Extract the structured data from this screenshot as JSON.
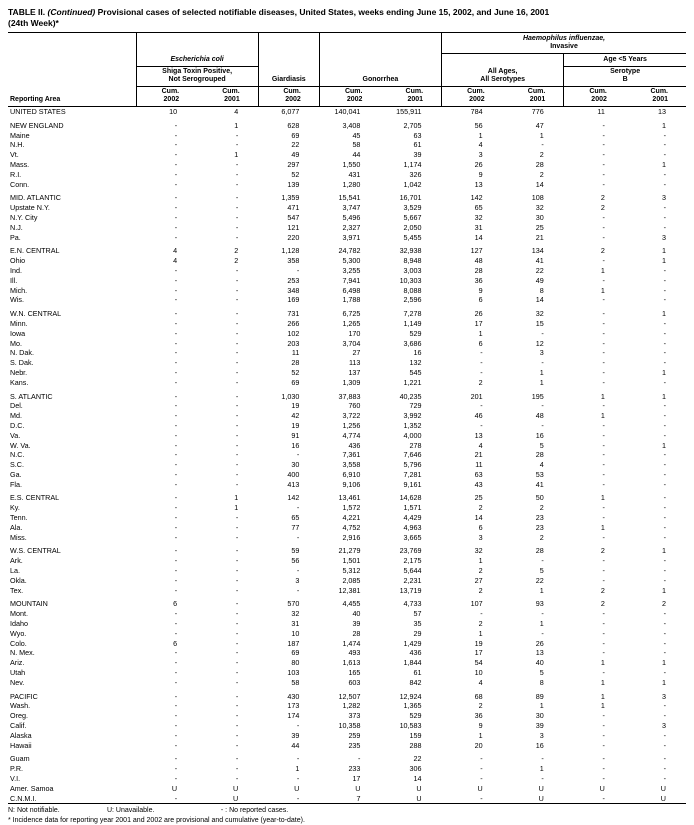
{
  "title": {
    "part1": "TABLE II.",
    "part2": "(Continued)",
    "part3": "Provisional cases of selected notifiable diseases, United States, weeks ending June 15, 2002, and June 16, 2001",
    "line2": "(24th Week)*"
  },
  "header": {
    "reporting_area": "Reporting Area",
    "ecoli_name": "Escherichia coli",
    "ecoli_sub1": "Shiga Toxin Positive,",
    "ecoli_sub2": "Not Serogrouped",
    "giardiasis": "Giardiasis",
    "gonorrhea": "Gonorrhea",
    "hflu_name": "Haemophilus influenzae,",
    "hflu_sub": "Invasive",
    "allages1": "All Ages,",
    "allages2": "All Serotypes",
    "age5": "Age <5 Years",
    "serotype1": "Serotype",
    "serotype2": "B",
    "cum": "Cum.",
    "years": [
      "2002",
      "2001",
      "2002",
      "2002",
      "2001",
      "2002",
      "2001",
      "2002",
      "2001"
    ]
  },
  "sections": [
    {
      "rows": [
        {
          "area": "UNITED STATES",
          "values": [
            "10",
            "4",
            "6,077",
            "140,041",
            "155,911",
            "784",
            "776",
            "11",
            "13"
          ]
        }
      ]
    },
    {
      "rows": [
        {
          "area": "NEW ENGLAND",
          "values": [
            "-",
            "1",
            "628",
            "3,408",
            "2,705",
            "56",
            "47",
            "-",
            "1"
          ]
        },
        {
          "area": "Maine",
          "values": [
            "-",
            "-",
            "69",
            "45",
            "63",
            "1",
            "1",
            "-",
            "-"
          ]
        },
        {
          "area": "N.H.",
          "values": [
            "-",
            "-",
            "22",
            "58",
            "61",
            "4",
            "-",
            "-",
            "-"
          ]
        },
        {
          "area": "Vt.",
          "values": [
            "-",
            "1",
            "49",
            "44",
            "39",
            "3",
            "2",
            "-",
            "-"
          ]
        },
        {
          "area": "Mass.",
          "values": [
            "-",
            "-",
            "297",
            "1,550",
            "1,174",
            "26",
            "28",
            "-",
            "1"
          ]
        },
        {
          "area": "R.I.",
          "values": [
            "-",
            "-",
            "52",
            "431",
            "326",
            "9",
            "2",
            "-",
            "-"
          ]
        },
        {
          "area": "Conn.",
          "values": [
            "-",
            "-",
            "139",
            "1,280",
            "1,042",
            "13",
            "14",
            "-",
            "-"
          ]
        }
      ]
    },
    {
      "rows": [
        {
          "area": "MID. ATLANTIC",
          "values": [
            "-",
            "-",
            "1,359",
            "15,541",
            "16,701",
            "142",
            "108",
            "2",
            "3"
          ]
        },
        {
          "area": "Upstate N.Y.",
          "values": [
            "-",
            "-",
            "471",
            "3,747",
            "3,529",
            "65",
            "32",
            "2",
            "-"
          ]
        },
        {
          "area": "N.Y. City",
          "values": [
            "-",
            "-",
            "547",
            "5,496",
            "5,667",
            "32",
            "30",
            "-",
            "-"
          ]
        },
        {
          "area": "N.J.",
          "values": [
            "-",
            "-",
            "121",
            "2,327",
            "2,050",
            "31",
            "25",
            "-",
            "-"
          ]
        },
        {
          "area": "Pa.",
          "values": [
            "-",
            "-",
            "220",
            "3,971",
            "5,455",
            "14",
            "21",
            "-",
            "3"
          ]
        }
      ]
    },
    {
      "rows": [
        {
          "area": "E.N. CENTRAL",
          "values": [
            "4",
            "2",
            "1,128",
            "24,782",
            "32,938",
            "127",
            "134",
            "2",
            "1"
          ]
        },
        {
          "area": "Ohio",
          "values": [
            "4",
            "2",
            "358",
            "5,300",
            "8,948",
            "48",
            "41",
            "-",
            "1"
          ]
        },
        {
          "area": "Ind.",
          "values": [
            "-",
            "-",
            "-",
            "3,255",
            "3,003",
            "28",
            "22",
            "1",
            "-"
          ]
        },
        {
          "area": "Ill.",
          "values": [
            "-",
            "-",
            "253",
            "7,941",
            "10,303",
            "36",
            "49",
            "-",
            "-"
          ]
        },
        {
          "area": "Mich.",
          "values": [
            "-",
            "-",
            "348",
            "6,498",
            "8,088",
            "9",
            "8",
            "1",
            "-"
          ]
        },
        {
          "area": "Wis.",
          "values": [
            "-",
            "-",
            "169",
            "1,788",
            "2,596",
            "6",
            "14",
            "-",
            "-"
          ]
        }
      ]
    },
    {
      "rows": [
        {
          "area": "W.N. CENTRAL",
          "values": [
            "-",
            "-",
            "731",
            "6,725",
            "7,278",
            "26",
            "32",
            "-",
            "1"
          ]
        },
        {
          "area": "Minn.",
          "values": [
            "-",
            "-",
            "266",
            "1,265",
            "1,149",
            "17",
            "15",
            "-",
            "-"
          ]
        },
        {
          "area": "Iowa",
          "values": [
            "-",
            "-",
            "102",
            "170",
            "529",
            "1",
            "-",
            "-",
            "-"
          ]
        },
        {
          "area": "Mo.",
          "values": [
            "-",
            "-",
            "203",
            "3,704",
            "3,686",
            "6",
            "12",
            "-",
            "-"
          ]
        },
        {
          "area": "N. Dak.",
          "values": [
            "-",
            "-",
            "11",
            "27",
            "16",
            "-",
            "3",
            "-",
            "-"
          ]
        },
        {
          "area": "S. Dak.",
          "values": [
            "-",
            "-",
            "28",
            "113",
            "132",
            "-",
            "-",
            "-",
            "-"
          ]
        },
        {
          "area": "Nebr.",
          "values": [
            "-",
            "-",
            "52",
            "137",
            "545",
            "-",
            "1",
            "-",
            "1"
          ]
        },
        {
          "area": "Kans.",
          "values": [
            "-",
            "-",
            "69",
            "1,309",
            "1,221",
            "2",
            "1",
            "-",
            "-"
          ]
        }
      ]
    },
    {
      "rows": [
        {
          "area": "S. ATLANTIC",
          "values": [
            "-",
            "-",
            "1,030",
            "37,883",
            "40,235",
            "201",
            "195",
            "1",
            "1"
          ]
        },
        {
          "area": "Del.",
          "values": [
            "-",
            "-",
            "19",
            "760",
            "729",
            "-",
            "-",
            "-",
            "-"
          ]
        },
        {
          "area": "Md.",
          "values": [
            "-",
            "-",
            "42",
            "3,722",
            "3,992",
            "46",
            "48",
            "1",
            "-"
          ]
        },
        {
          "area": "D.C.",
          "values": [
            "-",
            "-",
            "19",
            "1,256",
            "1,352",
            "-",
            "-",
            "-",
            "-"
          ]
        },
        {
          "area": "Va.",
          "values": [
            "-",
            "-",
            "91",
            "4,774",
            "4,000",
            "13",
            "16",
            "-",
            "-"
          ]
        },
        {
          "area": "W. Va.",
          "values": [
            "-",
            "-",
            "16",
            "436",
            "278",
            "4",
            "5",
            "-",
            "1"
          ]
        },
        {
          "area": "N.C.",
          "values": [
            "-",
            "-",
            "-",
            "7,361",
            "7,646",
            "21",
            "28",
            "-",
            "-"
          ]
        },
        {
          "area": "S.C.",
          "values": [
            "-",
            "-",
            "30",
            "3,558",
            "5,796",
            "11",
            "4",
            "-",
            "-"
          ]
        },
        {
          "area": "Ga.",
          "values": [
            "-",
            "-",
            "400",
            "6,910",
            "7,281",
            "63",
            "53",
            "-",
            "-"
          ]
        },
        {
          "area": "Fla.",
          "values": [
            "-",
            "-",
            "413",
            "9,106",
            "9,161",
            "43",
            "41",
            "-",
            "-"
          ]
        }
      ]
    },
    {
      "rows": [
        {
          "area": "E.S. CENTRAL",
          "values": [
            "-",
            "1",
            "142",
            "13,461",
            "14,628",
            "25",
            "50",
            "1",
            "-"
          ]
        },
        {
          "area": "Ky.",
          "values": [
            "-",
            "1",
            "-",
            "1,572",
            "1,571",
            "2",
            "2",
            "-",
            "-"
          ]
        },
        {
          "area": "Tenn.",
          "values": [
            "-",
            "-",
            "65",
            "4,221",
            "4,429",
            "14",
            "23",
            "-",
            "-"
          ]
        },
        {
          "area": "Ala.",
          "values": [
            "-",
            "-",
            "77",
            "4,752",
            "4,963",
            "6",
            "23",
            "1",
            "-"
          ]
        },
        {
          "area": "Miss.",
          "values": [
            "-",
            "-",
            "-",
            "2,916",
            "3,665",
            "3",
            "2",
            "-",
            "-"
          ]
        }
      ]
    },
    {
      "rows": [
        {
          "area": "W.S. CENTRAL",
          "values": [
            "-",
            "-",
            "59",
            "21,279",
            "23,769",
            "32",
            "28",
            "2",
            "1"
          ]
        },
        {
          "area": "Ark.",
          "values": [
            "-",
            "-",
            "56",
            "1,501",
            "2,175",
            "1",
            "-",
            "-",
            "-"
          ]
        },
        {
          "area": "La.",
          "values": [
            "-",
            "-",
            "-",
            "5,312",
            "5,644",
            "2",
            "5",
            "-",
            "-"
          ]
        },
        {
          "area": "Okla.",
          "values": [
            "-",
            "-",
            "3",
            "2,085",
            "2,231",
            "27",
            "22",
            "-",
            "-"
          ]
        },
        {
          "area": "Tex.",
          "values": [
            "-",
            "-",
            "-",
            "12,381",
            "13,719",
            "2",
            "1",
            "2",
            "1"
          ]
        }
      ]
    },
    {
      "rows": [
        {
          "area": "MOUNTAIN",
          "values": [
            "6",
            "-",
            "570",
            "4,455",
            "4,733",
            "107",
            "93",
            "2",
            "2"
          ]
        },
        {
          "area": "Mont.",
          "values": [
            "-",
            "-",
            "32",
            "40",
            "57",
            "-",
            "-",
            "-",
            "-"
          ]
        },
        {
          "area": "Idaho",
          "values": [
            "-",
            "-",
            "31",
            "39",
            "35",
            "2",
            "1",
            "-",
            "-"
          ]
        },
        {
          "area": "Wyo.",
          "values": [
            "-",
            "-",
            "10",
            "28",
            "29",
            "1",
            "-",
            "-",
            "-"
          ]
        },
        {
          "area": "Colo.",
          "values": [
            "6",
            "-",
            "187",
            "1,474",
            "1,429",
            "19",
            "26",
            "-",
            "-"
          ]
        },
        {
          "area": "N. Mex.",
          "values": [
            "-",
            "-",
            "69",
            "493",
            "436",
            "17",
            "13",
            "-",
            "-"
          ]
        },
        {
          "area": "Ariz.",
          "values": [
            "-",
            "-",
            "80",
            "1,613",
            "1,844",
            "54",
            "40",
            "1",
            "1"
          ]
        },
        {
          "area": "Utah",
          "values": [
            "-",
            "-",
            "103",
            "165",
            "61",
            "10",
            "5",
            "-",
            "-"
          ]
        },
        {
          "area": "Nev.",
          "values": [
            "-",
            "-",
            "58",
            "603",
            "842",
            "4",
            "8",
            "1",
            "1"
          ]
        }
      ]
    },
    {
      "rows": [
        {
          "area": "PACIFIC",
          "values": [
            "-",
            "-",
            "430",
            "12,507",
            "12,924",
            "68",
            "89",
            "1",
            "3"
          ]
        },
        {
          "area": "Wash.",
          "values": [
            "-",
            "-",
            "173",
            "1,282",
            "1,365",
            "2",
            "1",
            "1",
            "-"
          ]
        },
        {
          "area": "Oreg.",
          "values": [
            "-",
            "-",
            "174",
            "373",
            "529",
            "36",
            "30",
            "-",
            "-"
          ]
        },
        {
          "area": "Calif.",
          "values": [
            "-",
            "-",
            "-",
            "10,358",
            "10,583",
            "9",
            "39",
            "-",
            "3"
          ]
        },
        {
          "area": "Alaska",
          "values": [
            "-",
            "-",
            "39",
            "259",
            "159",
            "1",
            "3",
            "-",
            "-"
          ]
        },
        {
          "area": "Hawaii",
          "values": [
            "-",
            "-",
            "44",
            "235",
            "288",
            "20",
            "16",
            "-",
            "-"
          ]
        }
      ]
    },
    {
      "rows": [
        {
          "area": "Guam",
          "values": [
            "-",
            "-",
            "-",
            "-",
            "22",
            "-",
            "-",
            "-",
            "-"
          ]
        },
        {
          "area": "P.R.",
          "values": [
            "-",
            "-",
            "1",
            "233",
            "306",
            "-",
            "1",
            "-",
            "-"
          ]
        },
        {
          "area": "V.I.",
          "values": [
            "-",
            "-",
            "-",
            "17",
            "14",
            "-",
            "-",
            "-",
            "-"
          ]
        },
        {
          "area": "Amer. Samoa",
          "values": [
            "U",
            "U",
            "U",
            "U",
            "U",
            "U",
            "U",
            "U",
            "U"
          ]
        },
        {
          "area": "C.N.M.I.",
          "values": [
            "-",
            "U",
            "-",
            "7",
            "U",
            "-",
            "U",
            "-",
            "U"
          ]
        }
      ]
    }
  ],
  "footnotes": {
    "legend": [
      "N: Not notifiable.",
      "U: Unavailable.",
      "- : No reported cases."
    ],
    "note": "* Incidence data for reporting year 2001 and 2002 are provisional and cumulative (year-to-date)."
  }
}
